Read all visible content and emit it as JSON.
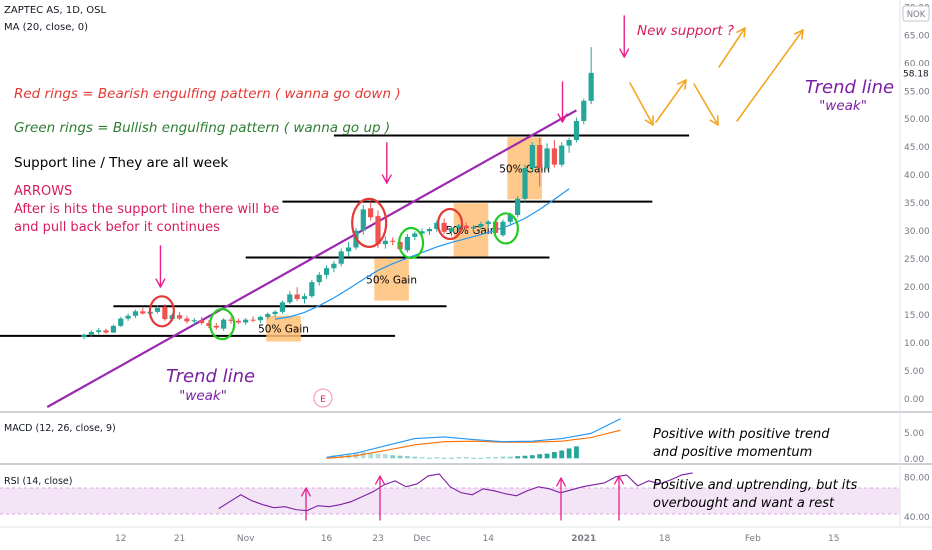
{
  "header": {
    "symbol_line": "ZAPTEC AS, 1D, OSL",
    "ma_line": "MA (20, close, 0)",
    "currency": "NOK",
    "last_price": "58.18"
  },
  "annotations": {
    "red_rings": "Red rings = Bearish engulfing pattern ( wanna go down )",
    "green_rings": "Green rings = Bullish engulfing pattern  ( wanna go up )",
    "support": "Support line / They are all week",
    "arrows_title": "ARROWS",
    "arrows_line1": "After is hits the support line there will be",
    "arrows_line2": "and pull back befor it continues",
    "new_support": "New support ?",
    "trend_right_1": "Trend line",
    "trend_right_2": "\"weak\"",
    "trend_left_1": "Trend line",
    "trend_left_2": "\"weak\"",
    "gain_label": "50% Gain",
    "earnings_marker": "E"
  },
  "macd": {
    "label": "MACD (12, 26, close, 9)",
    "note1": "Positive with positive trend",
    "note2": "and positive momentum",
    "ticks": [
      "5.00",
      "0.00"
    ]
  },
  "rsi": {
    "label": "RSI (14, close)",
    "note1": "Positive and uptrending, but its",
    "note2": "overbought and want a rest",
    "ticks": [
      "80.00",
      "40.00"
    ]
  },
  "colors": {
    "up": "#26a69a",
    "down": "#ef5350",
    "trend": "#9c27b0",
    "ma": "#2196f3",
    "arrow_pink": "#e91e8c",
    "arrow_orange": "#f5a623",
    "gain_box": "#ffc078",
    "red_text": "#e53935",
    "green_text": "#2e7d32",
    "pink_text": "#d81b60",
    "rsi_band": "#f3e5f5",
    "rsi_line": "#7b1fa2",
    "macd_line": "#2196f3",
    "signal_line": "#ff6d00"
  },
  "chart_data": {
    "type": "candlestick",
    "x_tick_labels": [
      "12",
      "21",
      "Nov",
      "16",
      "23",
      "Dec",
      "14",
      "2021",
      "18",
      "Feb",
      "15"
    ],
    "y_tick_labels": [
      "70.00",
      "65.00",
      "60.00",
      "55.00",
      "50.00",
      "45.00",
      "40.00",
      "35.00",
      "30.00",
      "25.00",
      "20.00",
      "15.00",
      "10.00",
      "5.00",
      "0.00"
    ],
    "ylim": [
      -1.5,
      70.5
    ],
    "candles": [
      {
        "o": 11.0,
        "h": 11.6,
        "l": 10.6,
        "c": 11.4
      },
      {
        "o": 11.4,
        "h": 12.2,
        "l": 11.0,
        "c": 11.9
      },
      {
        "o": 11.9,
        "h": 12.6,
        "l": 11.5,
        "c": 12.2
      },
      {
        "o": 12.2,
        "h": 12.5,
        "l": 11.6,
        "c": 11.8
      },
      {
        "o": 11.8,
        "h": 13.2,
        "l": 11.7,
        "c": 13.0
      },
      {
        "o": 13.0,
        "h": 14.6,
        "l": 12.8,
        "c": 14.3
      },
      {
        "o": 14.3,
        "h": 15.2,
        "l": 13.9,
        "c": 14.8
      },
      {
        "o": 14.8,
        "h": 15.9,
        "l": 14.4,
        "c": 15.6
      },
      {
        "o": 15.6,
        "h": 16.2,
        "l": 15.0,
        "c": 15.2
      },
      {
        "o": 15.2,
        "h": 15.9,
        "l": 14.7,
        "c": 15.5
      },
      {
        "o": 15.5,
        "h": 16.6,
        "l": 15.2,
        "c": 16.2
      },
      {
        "o": 16.4,
        "h": 16.9,
        "l": 13.9,
        "c": 14.2
      },
      {
        "o": 14.2,
        "h": 15.2,
        "l": 13.8,
        "c": 14.9
      },
      {
        "o": 14.9,
        "h": 15.5,
        "l": 14.0,
        "c": 14.3
      },
      {
        "o": 14.3,
        "h": 14.8,
        "l": 13.4,
        "c": 13.8
      },
      {
        "o": 13.8,
        "h": 14.4,
        "l": 13.2,
        "c": 14.0
      },
      {
        "o": 14.0,
        "h": 14.6,
        "l": 13.2,
        "c": 13.5
      },
      {
        "o": 13.5,
        "h": 14.0,
        "l": 12.6,
        "c": 13.0
      },
      {
        "o": 13.0,
        "h": 13.5,
        "l": 12.3,
        "c": 12.7
      },
      {
        "o": 12.5,
        "h": 14.4,
        "l": 12.1,
        "c": 14.1
      },
      {
        "o": 14.1,
        "h": 14.6,
        "l": 13.4,
        "c": 13.9
      },
      {
        "o": 13.9,
        "h": 14.3,
        "l": 13.3,
        "c": 13.6
      },
      {
        "o": 13.6,
        "h": 14.4,
        "l": 13.2,
        "c": 14.1
      },
      {
        "o": 14.1,
        "h": 14.7,
        "l": 13.6,
        "c": 14.0
      },
      {
        "o": 14.0,
        "h": 14.8,
        "l": 13.5,
        "c": 14.6
      },
      {
        "o": 14.6,
        "h": 15.4,
        "l": 14.2,
        "c": 15.1
      },
      {
        "o": 15.1,
        "h": 15.8,
        "l": 14.6,
        "c": 15.5
      },
      {
        "o": 15.5,
        "h": 17.5,
        "l": 15.2,
        "c": 17.2
      },
      {
        "o": 17.2,
        "h": 19.2,
        "l": 16.9,
        "c": 18.6
      },
      {
        "o": 18.6,
        "h": 19.9,
        "l": 17.4,
        "c": 17.8
      },
      {
        "o": 17.8,
        "h": 18.8,
        "l": 17.0,
        "c": 18.3
      },
      {
        "o": 18.3,
        "h": 21.2,
        "l": 18.0,
        "c": 20.8
      },
      {
        "o": 20.8,
        "h": 22.6,
        "l": 20.2,
        "c": 22.1
      },
      {
        "o": 22.1,
        "h": 23.8,
        "l": 21.4,
        "c": 23.3
      },
      {
        "o": 23.3,
        "h": 24.6,
        "l": 22.6,
        "c": 24.1
      },
      {
        "o": 24.1,
        "h": 26.8,
        "l": 23.6,
        "c": 26.3
      },
      {
        "o": 26.3,
        "h": 28.0,
        "l": 25.4,
        "c": 27.0
      },
      {
        "o": 27.0,
        "h": 30.5,
        "l": 26.6,
        "c": 30.0
      },
      {
        "o": 30.0,
        "h": 34.6,
        "l": 29.3,
        "c": 33.8
      },
      {
        "o": 34.0,
        "h": 35.2,
        "l": 31.8,
        "c": 32.4
      },
      {
        "o": 32.6,
        "h": 33.6,
        "l": 26.9,
        "c": 27.6
      },
      {
        "o": 27.6,
        "h": 29.0,
        "l": 26.8,
        "c": 28.2
      },
      {
        "o": 28.2,
        "h": 28.8,
        "l": 27.4,
        "c": 28.0
      },
      {
        "o": 28.0,
        "h": 28.4,
        "l": 26.3,
        "c": 26.7
      },
      {
        "o": 26.5,
        "h": 29.4,
        "l": 26.1,
        "c": 28.9
      },
      {
        "o": 28.9,
        "h": 29.9,
        "l": 28.3,
        "c": 29.5
      },
      {
        "o": 29.5,
        "h": 30.4,
        "l": 28.8,
        "c": 29.9
      },
      {
        "o": 29.9,
        "h": 30.6,
        "l": 29.2,
        "c": 30.3
      },
      {
        "o": 30.3,
        "h": 31.8,
        "l": 29.8,
        "c": 31.4
      },
      {
        "o": 31.4,
        "h": 32.2,
        "l": 29.4,
        "c": 29.8
      },
      {
        "o": 29.8,
        "h": 30.8,
        "l": 29.0,
        "c": 30.5
      },
      {
        "o": 30.5,
        "h": 31.2,
        "l": 29.7,
        "c": 30.9
      },
      {
        "o": 30.9,
        "h": 31.5,
        "l": 30.1,
        "c": 30.4
      },
      {
        "o": 30.4,
        "h": 31.0,
        "l": 29.6,
        "c": 30.7
      },
      {
        "o": 30.7,
        "h": 31.6,
        "l": 30.2,
        "c": 31.2
      },
      {
        "o": 31.2,
        "h": 31.9,
        "l": 30.6,
        "c": 31.6
      },
      {
        "o": 31.6,
        "h": 32.1,
        "l": 29.1,
        "c": 29.6
      },
      {
        "o": 29.2,
        "h": 32.0,
        "l": 28.9,
        "c": 31.6
      },
      {
        "o": 31.6,
        "h": 33.2,
        "l": 31.1,
        "c": 32.8
      },
      {
        "o": 32.8,
        "h": 36.2,
        "l": 32.4,
        "c": 35.7
      },
      {
        "o": 35.7,
        "h": 41.8,
        "l": 35.2,
        "c": 41.2
      },
      {
        "o": 41.2,
        "h": 45.8,
        "l": 40.6,
        "c": 45.3
      },
      {
        "o": 45.3,
        "h": 46.6,
        "l": 37.9,
        "c": 41.2
      },
      {
        "o": 41.2,
        "h": 45.6,
        "l": 40.8,
        "c": 44.7
      },
      {
        "o": 44.7,
        "h": 46.2,
        "l": 41.3,
        "c": 41.8
      },
      {
        "o": 41.8,
        "h": 45.8,
        "l": 41.4,
        "c": 45.2
      },
      {
        "o": 45.2,
        "h": 46.6,
        "l": 43.9,
        "c": 46.2
      },
      {
        "o": 46.2,
        "h": 50.2,
        "l": 45.8,
        "c": 49.6
      },
      {
        "o": 49.6,
        "h": 53.6,
        "l": 49.0,
        "c": 53.2
      },
      {
        "o": 53.2,
        "h": 62.8,
        "l": 52.6,
        "c": 58.2
      }
    ],
    "support_lines": [
      {
        "y": 11.2,
        "x_from": 0,
        "x_to": 26
      },
      {
        "y": 16.5,
        "x_from": 4,
        "x_to": 33
      },
      {
        "y": 25.2,
        "x_from": 22,
        "x_to": 47
      },
      {
        "y": 35.2,
        "x_from": 27,
        "x_to": 61
      },
      {
        "y": 47.0,
        "x_from": 34,
        "x_to": 66
      }
    ],
    "trend_line": {
      "from": [
        -5,
        -1.5
      ],
      "to": [
        67,
        51.5
      ]
    },
    "ma_20": [
      [
        26,
        14.2
      ],
      [
        28,
        14.6
      ],
      [
        30,
        15.4
      ],
      [
        32,
        16.6
      ],
      [
        34,
        18.0
      ],
      [
        36,
        19.6
      ],
      [
        38,
        21.3
      ],
      [
        40,
        22.9
      ],
      [
        42,
        24.1
      ],
      [
        44,
        25.1
      ],
      [
        46,
        26.1
      ],
      [
        48,
        27.1
      ],
      [
        50,
        27.9
      ],
      [
        52,
        28.6
      ],
      [
        54,
        29.3
      ],
      [
        56,
        30.1
      ],
      [
        58,
        31.0
      ],
      [
        60,
        32.2
      ],
      [
        62,
        33.8
      ],
      [
        64,
        35.6
      ],
      [
        66,
        37.5
      ]
    ],
    "rings": [
      {
        "type": "bearish",
        "x": 10.6,
        "y": 15.6
      },
      {
        "type": "bullish",
        "x": 18.8,
        "y": 13.3
      },
      {
        "type": "bearish",
        "x": 38.8,
        "y": 31.4
      },
      {
        "type": "bullish",
        "x": 44.5,
        "y": 27.8
      },
      {
        "type": "bearish",
        "x": 49.8,
        "y": 31.2
      },
      {
        "type": "bullish",
        "x": 57.4,
        "y": 30.4
      }
    ],
    "gain_boxes": [
      {
        "x0": 24.8,
        "x1": 29.5,
        "y0": 10.2,
        "y1": 14.8
      },
      {
        "x0": 39.5,
        "x1": 44.2,
        "y0": 17.5,
        "y1": 25.0
      },
      {
        "x0": 50.3,
        "x1": 55.0,
        "y0": 25.4,
        "y1": 34.9
      },
      {
        "x0": 57.6,
        "x1": 62.3,
        "y0": 35.6,
        "y1": 46.7
      }
    ],
    "macd": {
      "ylim": [
        -0.9,
        8.9
      ],
      "macd": [
        [
          26,
          0.2
        ],
        [
          30,
          1.0
        ],
        [
          34,
          2.4
        ],
        [
          38,
          3.8
        ],
        [
          42,
          4.1
        ],
        [
          46,
          3.6
        ],
        [
          50,
          3.2
        ],
        [
          54,
          3.3
        ],
        [
          58,
          3.8
        ],
        [
          62,
          4.8
        ],
        [
          66,
          7.6
        ]
      ],
      "signal": [
        [
          26,
          0.0
        ],
        [
          30,
          0.5
        ],
        [
          34,
          1.5
        ],
        [
          38,
          2.6
        ],
        [
          42,
          3.2
        ],
        [
          46,
          3.3
        ],
        [
          50,
          3.1
        ],
        [
          54,
          3.1
        ],
        [
          58,
          3.3
        ],
        [
          62,
          4.0
        ],
        [
          66,
          5.4
        ]
      ],
      "histogram": [
        0.6,
        0.7,
        0.9,
        1.1,
        1.2,
        1.1,
        0.9,
        0.8,
        0.6,
        0.5,
        0.4,
        0.3,
        0.2,
        0.1,
        0.2,
        0.1,
        0.1,
        0.2,
        0.2,
        0.1,
        0.1,
        0.2,
        0.2,
        0.3,
        0.3,
        0.4,
        0.5,
        0.6,
        0.8,
        0.9,
        1.2,
        1.5,
        1.9,
        2.3
      ]
    },
    "rsi": {
      "ylim": [
        29.5,
        93
      ],
      "values": [
        48,
        55,
        62,
        56,
        52,
        49,
        50,
        47,
        46,
        51,
        50,
        52,
        55,
        60,
        65,
        72,
        76,
        70,
        73,
        81,
        83,
        70,
        64,
        62,
        68,
        66,
        63,
        61,
        66,
        70,
        68,
        64,
        67,
        70,
        72,
        74,
        80,
        82,
        71,
        76,
        73,
        77,
        82,
        84
      ],
      "x_start": 2,
      "x_step": 1.5
    }
  }
}
